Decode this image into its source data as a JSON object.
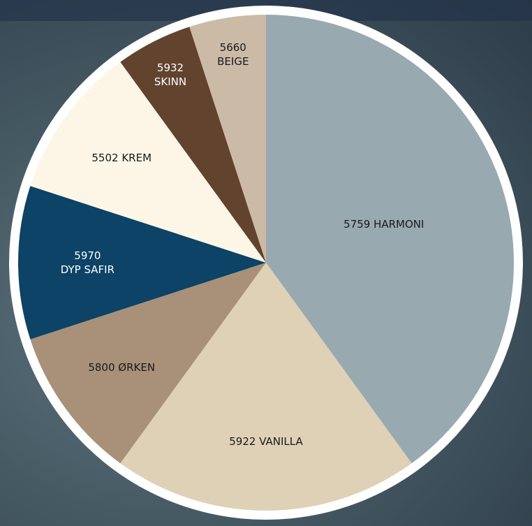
{
  "chart_data": {
    "type": "pie",
    "categories": [
      "5759 HARMONI",
      "5922 VANILLA",
      "5800 ØRKEN",
      "5970\nDYP SAFIR",
      "5502 KREM",
      "5932\nSKINN",
      "5660\nBEIGE"
    ],
    "values": [
      40,
      20,
      10,
      10,
      10,
      5,
      5
    ],
    "colors": [
      "#98a9b0",
      "#dfd1b6",
      "#a89178",
      "#0c4366",
      "#fdf6e7",
      "#62432e",
      "#cbbba6"
    ]
  }
}
